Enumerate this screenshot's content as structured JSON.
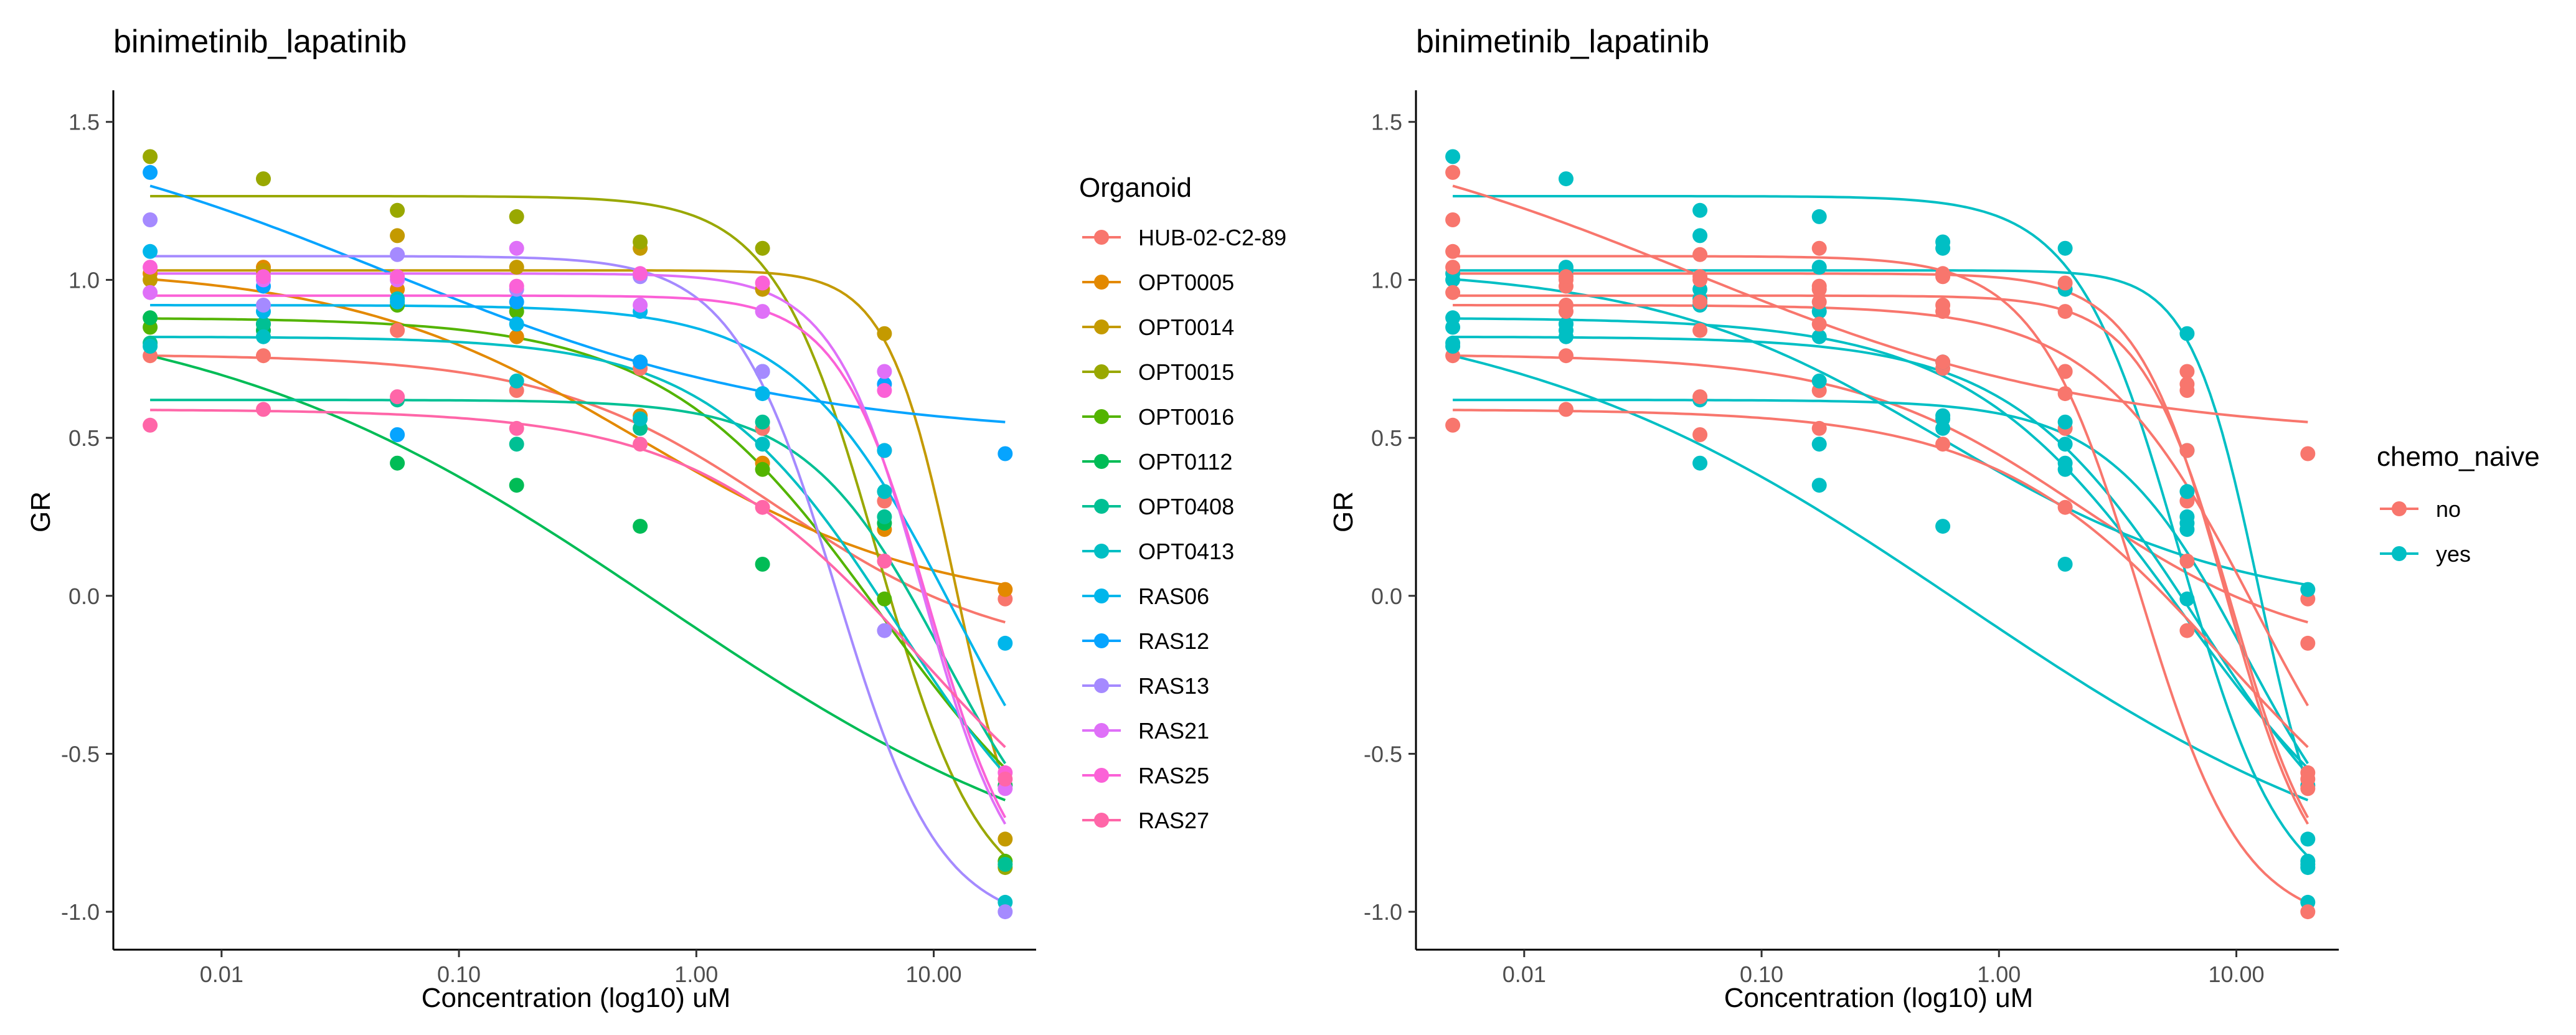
{
  "chart_data": [
    {
      "type": "scatter",
      "title": "binimetinib_lapatinib",
      "xlabel": "Concentration (log10) uM",
      "ylabel": "GR",
      "x_scale": "log10",
      "xlim": [
        0.0035,
        27
      ],
      "ylim": [
        -1.12,
        1.6
      ],
      "x_ticks": [
        0.01,
        0.1,
        1,
        10
      ],
      "x_tick_labels": [
        "0.01",
        "0.10",
        "1.00",
        "10.00"
      ],
      "y_ticks": [
        1.5,
        1.0,
        0.5,
        0.0,
        -0.5,
        -1.0
      ],
      "y_tick_labels": [
        "1.5",
        "1.0",
        "0.5",
        "0.0",
        "-0.5",
        "-1.0"
      ],
      "grid": false,
      "legend": {
        "title": "Organoid",
        "position": "right"
      },
      "concentrations": [
        0.005,
        0.015,
        0.055,
        0.175,
        0.58,
        1.9,
        6.2,
        20
      ],
      "series": [
        {
          "name": "HUB-02-C2-89",
          "color": "#F8766D",
          "values": [
            0.76,
            0.76,
            0.84,
            0.65,
            0.72,
            0.53,
            0.3,
            -0.01
          ]
        },
        {
          "name": "OPT0005",
          "color": "#E38900",
          "values": [
            1.02,
            1.04,
            0.97,
            0.82,
            0.57,
            0.42,
            0.21,
            0.02
          ]
        },
        {
          "name": "OPT0014",
          "color": "#C49A00",
          "values": [
            1.0,
            1.03,
            1.14,
            1.04,
            1.1,
            0.97,
            0.83,
            -0.77
          ]
        },
        {
          "name": "OPT0015",
          "color": "#99A800",
          "values": [
            1.39,
            1.32,
            1.22,
            1.2,
            1.12,
            1.1,
            0.46,
            -0.86
          ]
        },
        {
          "name": "OPT0016",
          "color": "#53B400",
          "values": [
            0.85,
            0.86,
            0.92,
            0.9,
            0.74,
            0.4,
            -0.01,
            -0.84
          ]
        },
        {
          "name": "OPT0112",
          "color": "#00BC56",
          "values": [
            0.88,
            0.84,
            0.42,
            0.35,
            0.22,
            0.1,
            0.23,
            -0.6
          ]
        },
        {
          "name": "OPT0408",
          "color": "#00C094",
          "values": [
            0.8,
            0.86,
            0.62,
            0.48,
            0.53,
            0.55,
            0.25,
            -0.85
          ]
        },
        {
          "name": "OPT0413",
          "color": "#00BFC4",
          "values": [
            0.79,
            0.82,
            0.94,
            0.68,
            0.56,
            0.48,
            0.33,
            -0.97
          ]
        },
        {
          "name": "RAS06",
          "color": "#00B6EB",
          "values": [
            1.09,
            0.9,
            0.93,
            0.86,
            0.9,
            0.64,
            0.46,
            -0.15
          ]
        },
        {
          "name": "RAS12",
          "color": "#06A4FF",
          "values": [
            1.34,
            0.98,
            0.51,
            0.93,
            0.74,
            0.71,
            0.67,
            0.45
          ]
        },
        {
          "name": "RAS13",
          "color": "#A58AFF",
          "values": [
            1.19,
            0.92,
            1.08,
            0.97,
            1.01,
            0.71,
            -0.11,
            -1.0
          ]
        },
        {
          "name": "RAS21",
          "color": "#DF70F8",
          "values": [
            0.96,
            1.0,
            1.0,
            1.1,
            0.92,
            0.9,
            0.71,
            -0.61
          ]
        },
        {
          "name": "RAS25",
          "color": "#FB61D7",
          "values": [
            1.04,
            1.01,
            1.01,
            0.98,
            1.02,
            0.99,
            0.65,
            -0.56
          ]
        },
        {
          "name": "RAS27",
          "color": "#FF66A8",
          "values": [
            0.54,
            0.59,
            0.63,
            0.53,
            0.48,
            0.28,
            0.11,
            -0.58
          ]
        }
      ],
      "fits": [
        {
          "name": "HUB-02-C2-89",
          "color": "#F8766D",
          "top": 0.764,
          "bottom": -0.2,
          "ec50": 2.2,
          "hill": 0.9
        },
        {
          "name": "OPT0005",
          "color": "#E38900",
          "top": 1.04,
          "bottom": -0.05,
          "ec50": 0.58,
          "hill": 0.7
        },
        {
          "name": "OPT0014",
          "color": "#C49A00",
          "top": 1.03,
          "bottom": -1.0,
          "ec50": 12.5,
          "hill": 3.0
        },
        {
          "name": "OPT0015",
          "color": "#99A800",
          "top": 1.265,
          "bottom": -1.0,
          "ec50": 5.8,
          "hill": 2.0
        },
        {
          "name": "OPT0016",
          "color": "#53B400",
          "top": 0.88,
          "bottom": -1.0,
          "ec50": 6.0,
          "hill": 0.95
        },
        {
          "name": "OPT0112",
          "color": "#00BC56",
          "top": 0.95,
          "bottom": -1.0,
          "ec50": 0.7,
          "hill": 0.45
        },
        {
          "name": "OPT0408",
          "color": "#00C094",
          "top": 0.62,
          "bottom": -1.0,
          "ec50": 11.0,
          "hill": 1.5
        },
        {
          "name": "OPT0413",
          "color": "#00BFC4",
          "top": 0.82,
          "bottom": -1.0,
          "ec50": 7.0,
          "hill": 1.1
        },
        {
          "name": "RAS06",
          "color": "#00B6EB",
          "top": 0.92,
          "bottom": -1.0,
          "ec50": 12.0,
          "hill": 1.3
        },
        {
          "name": "RAS12",
          "color": "#06A4FF",
          "top": 1.55,
          "bottom": 0.5,
          "ec50": 0.05,
          "hill": 0.5
        },
        {
          "name": "RAS13",
          "color": "#A58AFF",
          "top": 1.075,
          "bottom": -1.05,
          "ec50": 3.9,
          "hill": 2.0
        },
        {
          "name": "RAS21",
          "color": "#DF70F8",
          "top": 1.02,
          "bottom": -1.0,
          "ec50": 9.0,
          "hill": 2.3
        },
        {
          "name": "RAS25",
          "color": "#FB61D7",
          "top": 0.95,
          "bottom": -1.0,
          "ec50": 9.5,
          "hill": 2.3
        },
        {
          "name": "RAS27",
          "color": "#FF66A8",
          "top": 0.59,
          "bottom": -1.0,
          "ec50": 9.0,
          "hill": 0.9
        }
      ]
    },
    {
      "type": "scatter",
      "title": "binimetinib_lapatinib",
      "xlabel": "Concentration (log10) uM",
      "ylabel": "GR",
      "x_scale": "log10",
      "xlim": [
        0.0035,
        27
      ],
      "ylim": [
        -1.12,
        1.6
      ],
      "x_ticks": [
        0.01,
        0.1,
        1,
        10
      ],
      "x_tick_labels": [
        "0.01",
        "0.10",
        "1.00",
        "10.00"
      ],
      "y_ticks": [
        1.5,
        1.0,
        0.5,
        0.0,
        -0.5,
        -1.0
      ],
      "y_tick_labels": [
        "1.5",
        "1.0",
        "0.5",
        "0.0",
        "-0.5",
        "-1.0"
      ],
      "grid": false,
      "legend": {
        "title": "chemo_naive",
        "position": "right"
      },
      "groups": [
        {
          "name": "no",
          "color": "#F8766D",
          "members": [
            "HUB-02-C2-89",
            "RAS06",
            "RAS12",
            "RAS13",
            "RAS21",
            "RAS25",
            "RAS27"
          ]
        },
        {
          "name": "yes",
          "color": "#00BFC4",
          "members": [
            "OPT0005",
            "OPT0014",
            "OPT0015",
            "OPT0016",
            "OPT0112",
            "OPT0408",
            "OPT0413"
          ]
        }
      ]
    }
  ]
}
